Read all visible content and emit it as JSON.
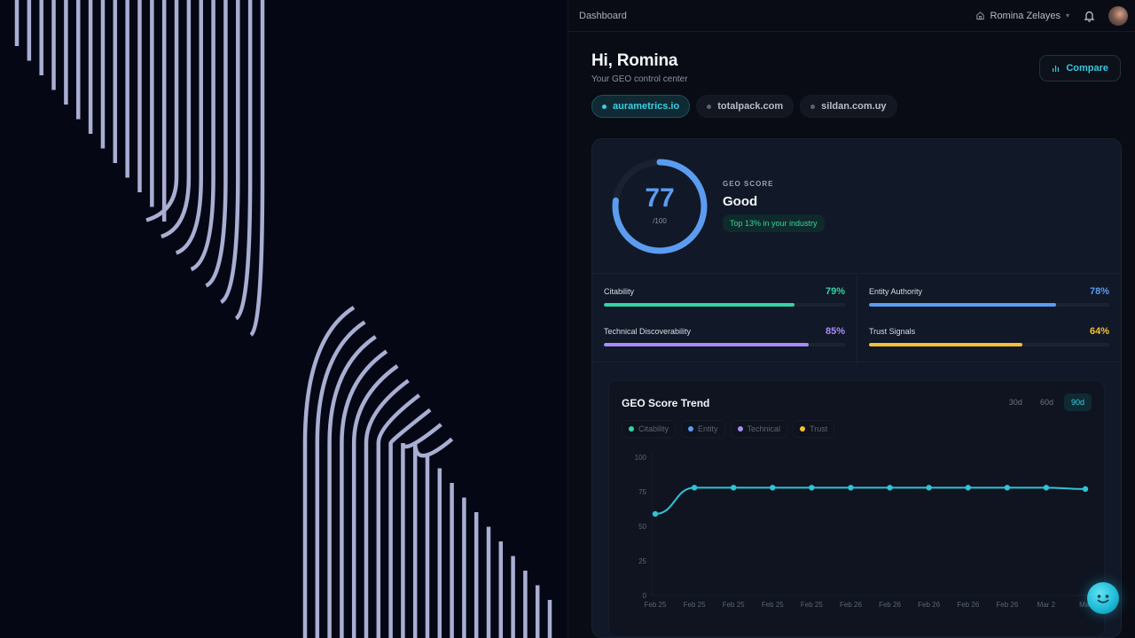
{
  "topbar": {
    "breadcrumb": "Dashboard",
    "user_name": "Romina Zelayes",
    "icons": {
      "home": "home-icon",
      "chevron": "chevron-down-icon",
      "bell": "bell-icon",
      "avatar": "user-avatar"
    }
  },
  "header": {
    "greeting": "Hi, Romina",
    "subtitle": "Your GEO control center",
    "compare_label": "Compare"
  },
  "domains": [
    {
      "label": "aurametrics.io",
      "active": true
    },
    {
      "label": "totalpack.com",
      "active": false
    },
    {
      "label": "sildan.com.uy",
      "active": false
    }
  ],
  "score": {
    "value": "77",
    "max": "/100",
    "label": "GEO SCORE",
    "rating": "Good",
    "badge": "Top 13% in your industry",
    "percent": 77,
    "color": "#5b9cf0"
  },
  "metrics": [
    {
      "name": "Citability",
      "pct": "79%",
      "value": 79,
      "color": "#34d3a3"
    },
    {
      "name": "Technical Discoverability",
      "pct": "85%",
      "value": 85,
      "color": "#a78bfa"
    },
    {
      "name": "Entity Authority",
      "pct": "78%",
      "value": 78,
      "color": "#5b9cf0"
    },
    {
      "name": "Trust Signals",
      "pct": "64%",
      "value": 64,
      "color": "#f5c033"
    }
  ],
  "trend": {
    "title": "GEO Score Trend",
    "ranges": [
      {
        "label": "30d",
        "active": false
      },
      {
        "label": "60d",
        "active": false
      },
      {
        "label": "90d",
        "active": true
      }
    ],
    "legend": [
      {
        "label": "Citability",
        "color": "#34d3a3"
      },
      {
        "label": "Entity",
        "color": "#5b9cf0"
      },
      {
        "label": "Technical",
        "color": "#a78bfa"
      },
      {
        "label": "Trust",
        "color": "#f5c033"
      }
    ]
  },
  "chart_data": {
    "type": "line",
    "title": "GEO Score Trend",
    "xlabel": "",
    "ylabel": "",
    "ylim": [
      0,
      100
    ],
    "yticks": [
      0,
      25,
      50,
      75,
      100
    ],
    "grid": false,
    "categories": [
      "Feb 25",
      "Feb 25",
      "Feb 25",
      "Feb 25",
      "Feb 25",
      "Feb 26",
      "Feb 26",
      "Feb 26",
      "Feb 26",
      "Feb 26",
      "Mar 2",
      "Mar"
    ],
    "series": [
      {
        "name": "GEO Score",
        "color": "#2fc3d6",
        "values": [
          59,
          78,
          78,
          78,
          78,
          78,
          78,
          78,
          78,
          78,
          78,
          77
        ]
      }
    ]
  },
  "chat": {
    "icon": "chatbot-smiley-icon"
  }
}
